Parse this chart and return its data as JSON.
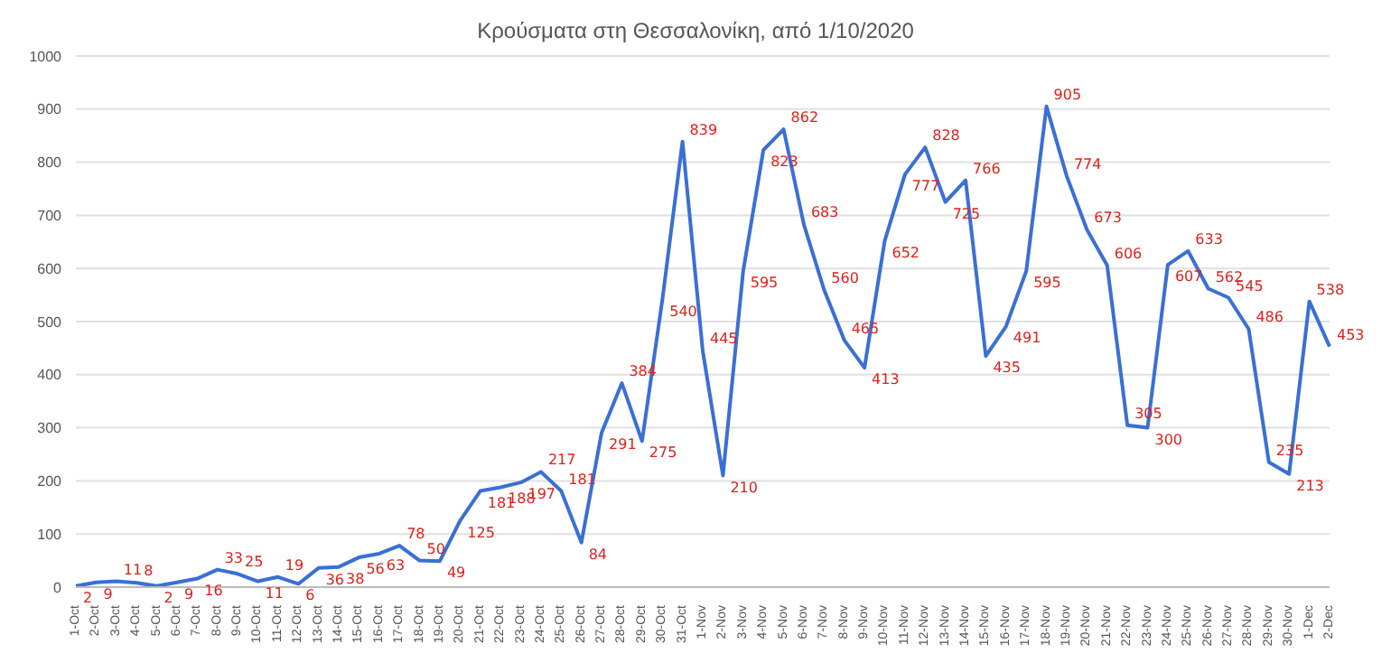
{
  "chart_data": {
    "type": "line",
    "title": "Κρούσματα στη Θεσσαλονίκη, από 1/10/2020",
    "categories": [
      "1-Oct",
      "2-Oct",
      "3-Oct",
      "4-Oct",
      "5-Oct",
      "6-Oct",
      "7-Oct",
      "8-Oct",
      "9-Oct",
      "10-Oct",
      "11-Oct",
      "12-Oct",
      "13-Oct",
      "14-Oct",
      "15-Oct",
      "16-Oct",
      "17-Oct",
      "18-Oct",
      "19-Oct",
      "20-Oct",
      "21-Oct",
      "22-Oct",
      "23-Oct",
      "24-Oct",
      "25-Oct",
      "26-Oct",
      "27-Oct",
      "28-Oct",
      "29-Oct",
      "30-Oct",
      "31-Oct",
      "1-Nov",
      "2-Nov",
      "3-Nov",
      "4-Nov",
      "5-Nov",
      "6-Nov",
      "7-Nov",
      "8-Nov",
      "9-Nov",
      "10-Nov",
      "11-Nov",
      "12-Nov",
      "13-Nov",
      "14-Nov",
      "15-Nov",
      "16-Nov",
      "17-Nov",
      "18-Nov",
      "19-Nov",
      "20-Nov",
      "21-Nov",
      "22-Nov",
      "23-Nov",
      "24-Nov",
      "25-Nov",
      "26-Nov",
      "27-Nov",
      "28-Nov",
      "29-Nov",
      "30-Nov",
      "1-Dec",
      "2-Dec"
    ],
    "series": [
      {
        "color": "#3a6fd6",
        "values": [
          2,
          9,
          11,
          8,
          2,
          9,
          16,
          33,
          25,
          11,
          19,
          6,
          36,
          38,
          56,
          63,
          78,
          50,
          49,
          125,
          181,
          188,
          197,
          217,
          181,
          84,
          291,
          384,
          275,
          540,
          839,
          445,
          210,
          595,
          823,
          862,
          683,
          560,
          465,
          413,
          652,
          777,
          828,
          725,
          766,
          435,
          491,
          595,
          905,
          774,
          673,
          606,
          305,
          300,
          607,
          633,
          562,
          545,
          486,
          235,
          213,
          538,
          453
        ]
      }
    ],
    "ylim": [
      0,
      1000
    ],
    "yticks": [
      0,
      100,
      200,
      300,
      400,
      500,
      600,
      700,
      800,
      900,
      1000
    ],
    "grid": "y",
    "data_labels": true,
    "marker": "none",
    "line_style": "solid"
  }
}
